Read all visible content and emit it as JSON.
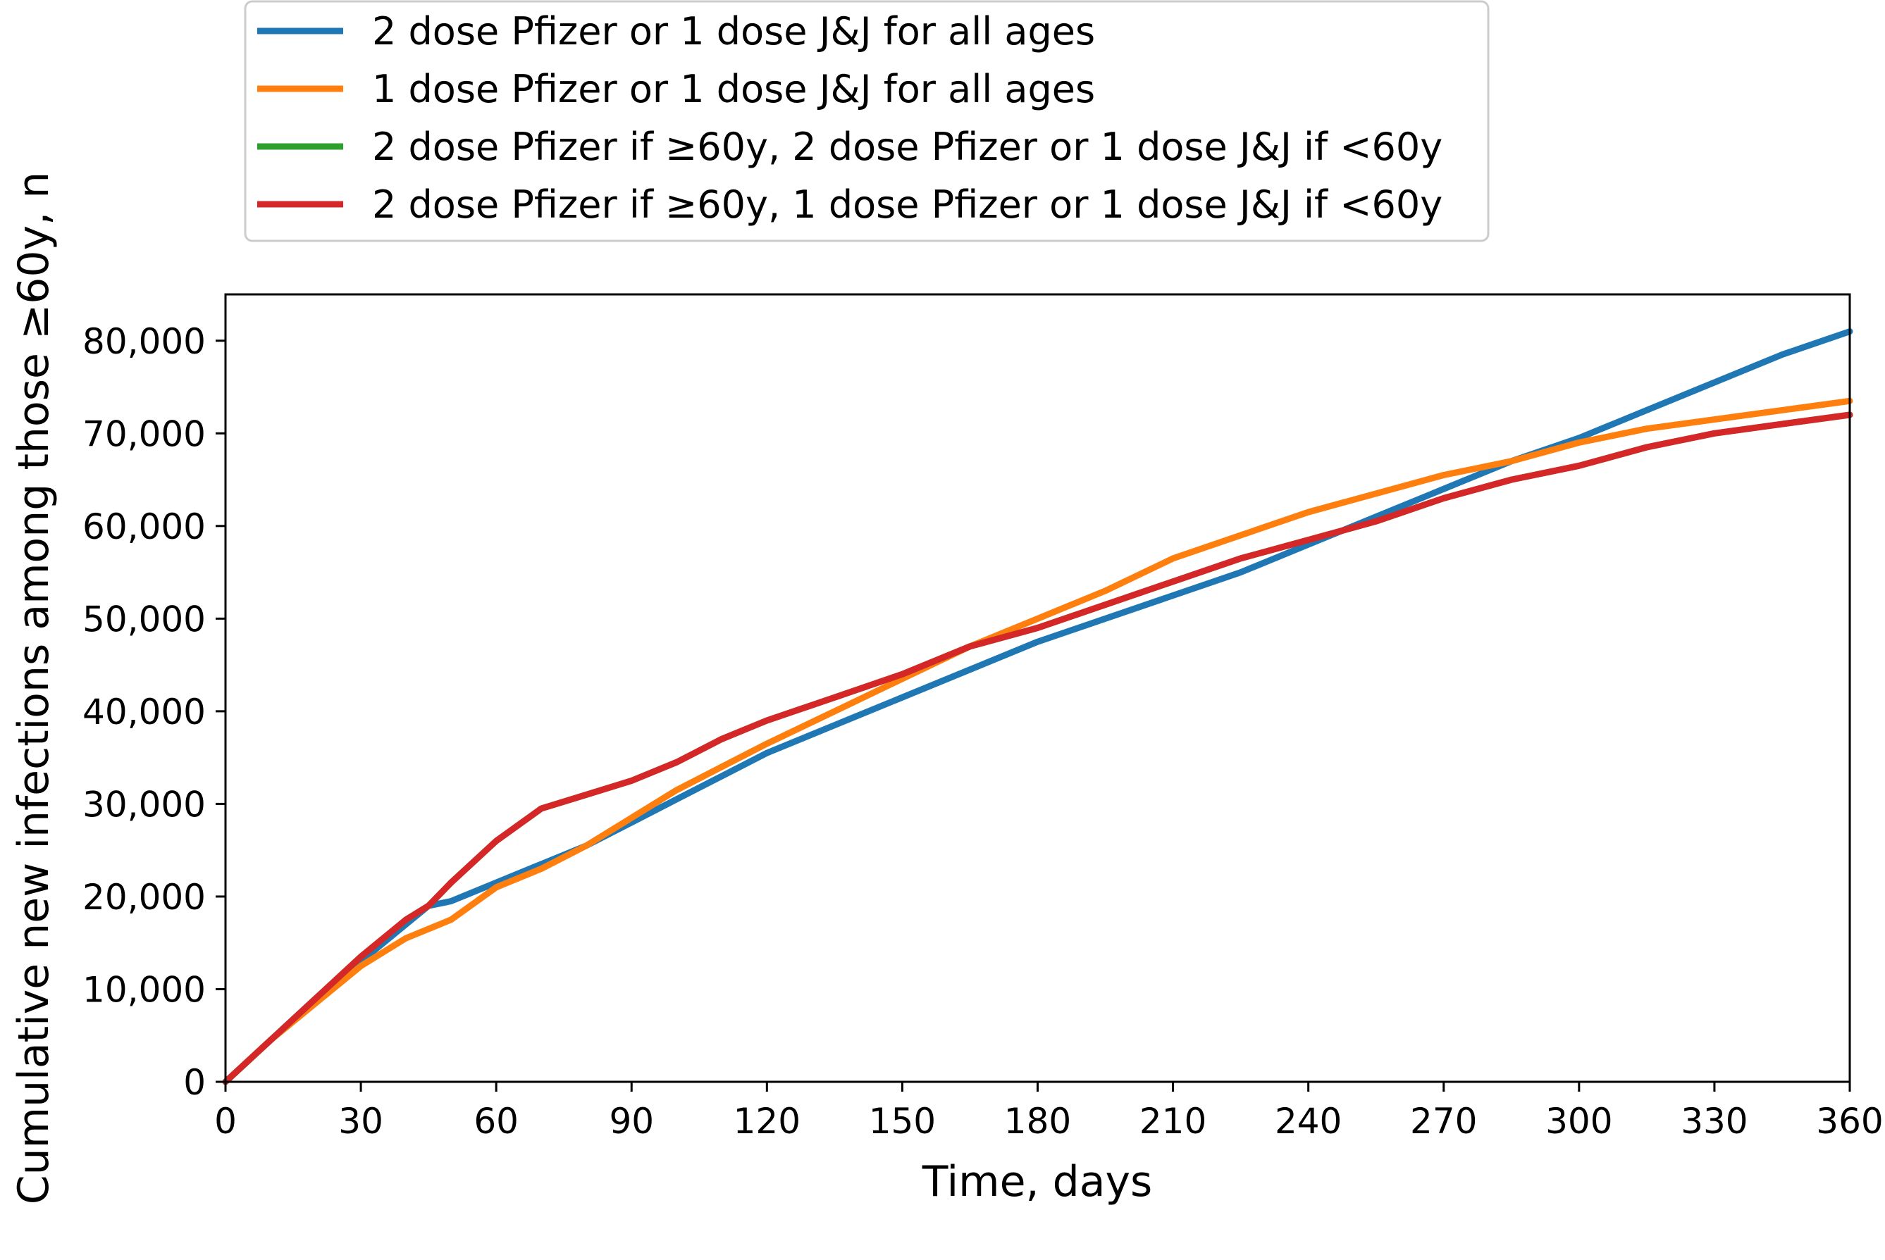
{
  "chart_data": {
    "type": "line",
    "title": "",
    "xlabel": "Time, days",
    "ylabel": "Cumulative new infections among those ≥60y, n",
    "xlim": [
      0,
      360
    ],
    "ylim": [
      0,
      85000
    ],
    "xticks": [
      0,
      30,
      60,
      90,
      120,
      150,
      180,
      210,
      240,
      270,
      300,
      330,
      360
    ],
    "xtick_labels": [
      "0",
      "30",
      "60",
      "90",
      "120",
      "150",
      "180",
      "210",
      "240",
      "270",
      "300",
      "330",
      "360"
    ],
    "yticks": [
      0,
      10000,
      20000,
      30000,
      40000,
      50000,
      60000,
      70000,
      80000
    ],
    "ytick_labels": [
      "0",
      "10,000",
      "20,000",
      "30,000",
      "40,000",
      "50,000",
      "60,000",
      "70,000",
      "80,000"
    ],
    "grid": false,
    "legend_position": "top-left, above plot",
    "series": [
      {
        "name": "2 dose Pfizer or 1 dose J&J for all ages",
        "color": "#1f77b4",
        "x": [
          0,
          10,
          20,
          30,
          40,
          45,
          50,
          60,
          70,
          80,
          90,
          100,
          110,
          120,
          135,
          150,
          165,
          180,
          195,
          210,
          225,
          240,
          255,
          270,
          285,
          300,
          315,
          330,
          345,
          360
        ],
        "y": [
          0,
          4500,
          9000,
          13000,
          17000,
          19000,
          19500,
          21500,
          23500,
          25500,
          28000,
          30500,
          33000,
          35500,
          38500,
          41500,
          44500,
          47500,
          50000,
          52500,
          55000,
          58000,
          61000,
          64000,
          67000,
          69500,
          72500,
          75500,
          78500,
          81000
        ]
      },
      {
        "name": "1 dose Pfizer or 1 dose J&J for all ages",
        "color": "#ff7f0e",
        "x": [
          0,
          10,
          20,
          30,
          40,
          50,
          60,
          70,
          80,
          90,
          100,
          110,
          120,
          135,
          150,
          165,
          180,
          195,
          210,
          225,
          240,
          255,
          270,
          285,
          300,
          315,
          330,
          345,
          360
        ],
        "y": [
          0,
          4500,
          8500,
          12500,
          15500,
          17500,
          21000,
          23000,
          25500,
          28500,
          31500,
          34000,
          36500,
          40000,
          43500,
          47000,
          50000,
          53000,
          56500,
          59000,
          61500,
          63500,
          65500,
          67000,
          69000,
          70500,
          71500,
          72500,
          73500
        ]
      },
      {
        "name": "2 dose Pfizer if ≥60y, 2 dose Pfizer or 1 dose J&J if <60y",
        "color": "#2ca02c",
        "x": [
          0,
          10,
          20,
          30,
          40,
          45,
          50,
          60,
          70,
          80,
          90,
          100,
          110,
          120,
          135,
          150,
          165,
          180,
          195,
          210,
          225,
          240,
          255,
          270,
          285,
          300,
          315,
          330,
          345,
          360
        ],
        "y": [
          0,
          4500,
          9000,
          13500,
          17500,
          19000,
          21500,
          26000,
          29500,
          31000,
          32500,
          34500,
          37000,
          39000,
          41500,
          44000,
          47000,
          49000,
          51500,
          54000,
          56500,
          58500,
          60500,
          63000,
          65000,
          66500,
          68500,
          70000,
          71000,
          72000
        ]
      },
      {
        "name": "2 dose Pfizer if ≥60y, 1 dose Pfizer or 1 dose J&J if <60y",
        "color": "#d62728",
        "x": [
          0,
          10,
          20,
          30,
          40,
          45,
          50,
          60,
          70,
          80,
          90,
          100,
          110,
          120,
          135,
          150,
          165,
          180,
          195,
          210,
          225,
          240,
          255,
          270,
          285,
          300,
          315,
          330,
          345,
          360
        ],
        "y": [
          0,
          4500,
          9000,
          13500,
          17500,
          19000,
          21500,
          26000,
          29500,
          31000,
          32500,
          34500,
          37000,
          39000,
          41500,
          44000,
          47000,
          49000,
          51500,
          54000,
          56500,
          58500,
          60500,
          63000,
          65000,
          66500,
          68500,
          70000,
          71000,
          72000
        ]
      }
    ]
  }
}
